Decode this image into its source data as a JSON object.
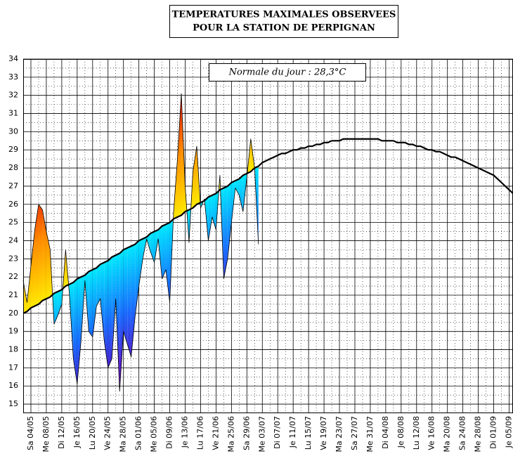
{
  "chart_data": {
    "type": "line",
    "title": "TEMPERATURES MAXIMALES OBSERVEES",
    "subtitle": "POUR LA STATION DE PERPIGNAN",
    "annotation": "Normale du jour : 28,3°C",
    "categories": [
      null,
      null,
      "Sa 04/05",
      null,
      null,
      null,
      "Me 08/05",
      null,
      null,
      null,
      "Di 12/05",
      null,
      null,
      null,
      "Je 16/05",
      null,
      null,
      null,
      "Lu 20/05",
      null,
      null,
      null,
      "Ve 24/05",
      null,
      null,
      null,
      "Ma 28/05",
      null,
      null,
      null,
      "Sa 01/06",
      null,
      null,
      null,
      "Me 05/06",
      null,
      null,
      null,
      "Di 09/06",
      null,
      null,
      null,
      "Je 13/06",
      null,
      null,
      null,
      "Lu 17/06",
      null,
      null,
      null,
      "Ve 21/06",
      null,
      null,
      null,
      "Ma 25/06",
      null,
      null,
      null,
      "Sa 29/06",
      null,
      null,
      null,
      "Me 03/07",
      null,
      null,
      null,
      "Di 07/07",
      null,
      null,
      null,
      "Je 11/07",
      null,
      null,
      null,
      "Lu 15/07",
      null,
      null,
      null,
      "Ve 19/07",
      null,
      null,
      null,
      "Ma 23/07",
      null,
      null,
      null,
      "Sa 27/07",
      null,
      null,
      null,
      "Me 31/07",
      null,
      null,
      null,
      "Di 04/08",
      null,
      null,
      null,
      "Je 08/08",
      null,
      null,
      null,
      "Lu 12/08",
      null,
      null,
      null,
      "Ve 16/08",
      null,
      null,
      null,
      "Ma 20/08",
      null,
      null,
      null,
      "Sa 24/08",
      null,
      null,
      null,
      "Me 28/08",
      null,
      null,
      null,
      "Di 01/09",
      null,
      null,
      null,
      "Je 05/09",
      null
    ],
    "series": [
      {
        "color": "#000000",
        "values": [
          21.8,
          20.6,
          22.6,
          24.6,
          26.0,
          25.7,
          24.5,
          23.5,
          19.4,
          19.9,
          20.5,
          23.5,
          21.0,
          17.5,
          16.1,
          18.5,
          21.8,
          19.0,
          18.7,
          20.4,
          20.8,
          18.5,
          17.0,
          17.5,
          20.8,
          15.7,
          19.0,
          18.3,
          17.6,
          19.8,
          21.5,
          23.0,
          24.1,
          23.4,
          22.8,
          24.1,
          21.9,
          22.4,
          20.6,
          25.6,
          28.5,
          32.1,
          27.0,
          23.9,
          27.8,
          29.2,
          25.8,
          26.3,
          24.0,
          25.3,
          24.6,
          27.6,
          21.9,
          23.0,
          25.0,
          26.9,
          26.5,
          25.6,
          27.5,
          29.6,
          28.0,
          23.8,
          null,
          null,
          null,
          null,
          null,
          null,
          null,
          null,
          null,
          null,
          null,
          null,
          null,
          null,
          null,
          null,
          null,
          null,
          null,
          null,
          null,
          null,
          null,
          null,
          null,
          null,
          null,
          null,
          null,
          null,
          null,
          null,
          null,
          null,
          null,
          null,
          null,
          null,
          null,
          null,
          null,
          null,
          null,
          null,
          null,
          null,
          null,
          null,
          null,
          null,
          null,
          null,
          null,
          null,
          null,
          null,
          null,
          null,
          null,
          null,
          null,
          null,
          null,
          null,
          null,
          null
        ]
      },
      {
        "color": "#000000",
        "values": [
          20.0,
          20.1,
          20.3,
          20.4,
          20.5,
          20.7,
          20.8,
          20.9,
          21.1,
          21.2,
          21.3,
          21.5,
          21.6,
          21.7,
          21.9,
          22.0,
          22.1,
          22.3,
          22.4,
          22.5,
          22.7,
          22.8,
          22.9,
          23.1,
          23.2,
          23.3,
          23.5,
          23.6,
          23.7,
          23.8,
          24.0,
          24.1,
          24.2,
          24.4,
          24.5,
          24.6,
          24.8,
          24.9,
          25.0,
          25.2,
          25.3,
          25.4,
          25.6,
          25.7,
          25.8,
          26.0,
          26.1,
          26.2,
          26.4,
          26.5,
          26.6,
          26.8,
          26.9,
          27.0,
          27.2,
          27.3,
          27.4,
          27.6,
          27.7,
          27.8,
          28.0,
          28.1,
          28.3,
          28.4,
          28.5,
          28.6,
          28.7,
          28.8,
          28.8,
          28.9,
          29.0,
          29.0,
          29.1,
          29.1,
          29.2,
          29.2,
          29.3,
          29.3,
          29.4,
          29.4,
          29.5,
          29.5,
          29.5,
          29.6,
          29.6,
          29.6,
          29.6,
          29.6,
          29.6,
          29.6,
          29.6,
          29.6,
          29.6,
          29.5,
          29.5,
          29.5,
          29.5,
          29.4,
          29.4,
          29.4,
          29.3,
          29.3,
          29.2,
          29.2,
          29.1,
          29.0,
          29.0,
          28.9,
          28.9,
          28.8,
          28.7,
          28.6,
          28.6,
          28.5,
          28.4,
          28.3,
          28.2,
          28.1,
          28.0,
          27.9,
          27.8,
          27.7,
          27.6,
          27.4,
          27.2,
          27.0,
          26.8,
          26.6
        ]
      }
    ],
    "anomaly_colors": {
      "above": [
        "#ffe800",
        "#ff8a00",
        "#e00000"
      ],
      "below": [
        "#00e8ff",
        "#1a6cff",
        "#6000c0"
      ]
    },
    "ylim": [
      14.5,
      34
    ],
    "yticks": [
      15,
      16,
      17,
      18,
      19,
      20,
      21,
      22,
      23,
      24,
      25,
      26,
      27,
      28,
      29,
      30,
      31,
      32,
      33,
      34
    ],
    "grid": true
  }
}
